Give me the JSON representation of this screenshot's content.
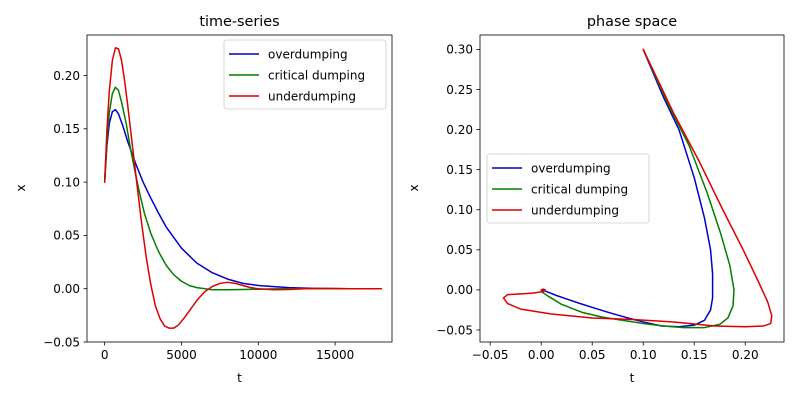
{
  "chart_data": [
    {
      "type": "line",
      "title": "time-series",
      "xlabel": "t",
      "ylabel": "x",
      "xlim": [
        -1150,
        18700
      ],
      "ylim": [
        -0.05,
        0.238
      ],
      "xticks": [
        0,
        5000,
        10000,
        15000
      ],
      "xtick_labels": [
        "0",
        "5000",
        "10000",
        "15000"
      ],
      "yticks": [
        -0.05,
        0.0,
        0.05,
        0.1,
        0.15,
        0.2
      ],
      "ytick_labels": [
        "−0.05",
        "0.00",
        "0.05",
        "0.10",
        "0.15",
        "0.20"
      ],
      "grid": false,
      "legend_position": "top-right",
      "series": [
        {
          "name": "overdumping",
          "color": "#0000cc",
          "x": [
            0,
            150,
            300,
            500,
            700,
            900,
            1200,
            1500,
            2000,
            2500,
            3000,
            3500,
            4000,
            5000,
            6000,
            7000,
            8000,
            9000,
            10000,
            11000,
            12000,
            13000,
            14000,
            15000,
            16000,
            17000,
            18000
          ],
          "y": [
            0.1,
            0.135,
            0.155,
            0.166,
            0.168,
            0.164,
            0.152,
            0.138,
            0.118,
            0.1,
            0.085,
            0.071,
            0.058,
            0.038,
            0.024,
            0.015,
            0.009,
            0.005,
            0.003,
            0.002,
            0.001,
            0.0005,
            0.0002,
            0.0001,
            0.0,
            0.0,
            0.0
          ]
        },
        {
          "name": "critical dumping",
          "color": "#008000",
          "x": [
            0,
            150,
            300,
            500,
            700,
            900,
            1100,
            1400,
            1700,
            2000,
            2300,
            2600,
            3000,
            3500,
            4000,
            4500,
            5000,
            5500,
            6000,
            7000,
            8000,
            9000,
            10000,
            11000,
            12000,
            13000,
            14000,
            15000,
            16000,
            17000,
            18000
          ],
          "y": [
            0.1,
            0.14,
            0.165,
            0.183,
            0.189,
            0.186,
            0.175,
            0.155,
            0.13,
            0.108,
            0.088,
            0.07,
            0.052,
            0.035,
            0.022,
            0.013,
            0.007,
            0.003,
            0.001,
            -0.001,
            -0.001,
            -0.0008,
            -0.0005,
            -0.0002,
            0.0,
            0.0,
            0.0,
            0.0,
            0.0,
            0.0,
            0.0
          ]
        },
        {
          "name": "underdumping",
          "color": "#dd0000",
          "x": [
            0,
            150,
            300,
            500,
            700,
            900,
            1100,
            1300,
            1500,
            1800,
            2100,
            2400,
            2700,
            3000,
            3300,
            3600,
            3900,
            4200,
            4500,
            4800,
            5200,
            5600,
            6000,
            6500,
            7000,
            7500,
            8000,
            8500,
            9000,
            9500,
            10000,
            11000,
            12000,
            13000,
            14000,
            15000,
            16000,
            17000,
            18000
          ],
          "y": [
            0.1,
            0.15,
            0.185,
            0.214,
            0.226,
            0.225,
            0.214,
            0.195,
            0.172,
            0.135,
            0.098,
            0.062,
            0.03,
            0.004,
            -0.016,
            -0.028,
            -0.035,
            -0.037,
            -0.037,
            -0.034,
            -0.027,
            -0.019,
            -0.011,
            -0.003,
            0.002,
            0.005,
            0.006,
            0.005,
            0.003,
            0.001,
            0.0,
            -0.001,
            -0.0008,
            0.0,
            0.0003,
            0.0002,
            0.0,
            0.0,
            0.0
          ]
        }
      ]
    },
    {
      "type": "line",
      "title": "phase space",
      "xlabel": "t",
      "ylabel": "x",
      "xlim": [
        -0.06,
        0.238
      ],
      "ylim": [
        -0.065,
        0.318
      ],
      "xticks": [
        -0.05,
        0.0,
        0.05,
        0.1,
        0.15,
        0.2
      ],
      "xtick_labels": [
        "−0.05",
        "0.00",
        "0.05",
        "0.10",
        "0.15",
        "0.20"
      ],
      "yticks": [
        -0.05,
        0.0,
        0.05,
        0.1,
        0.15,
        0.2,
        0.25,
        0.3
      ],
      "ytick_labels": [
        "−0.05",
        "0.00",
        "0.05",
        "0.10",
        "0.15",
        "0.20",
        "0.25",
        "0.30"
      ],
      "grid": false,
      "legend_position": "center-left",
      "series": [
        {
          "name": "overdumping",
          "color": "#0000cc",
          "x": [
            0.1,
            0.12,
            0.135,
            0.15,
            0.16,
            0.166,
            0.168,
            0.168,
            0.166,
            0.16,
            0.15,
            0.135,
            0.118,
            0.1,
            0.085,
            0.071,
            0.058,
            0.038,
            0.024,
            0.015,
            0.009,
            0.003,
            0.0
          ],
          "y": [
            0.3,
            0.24,
            0.2,
            0.14,
            0.09,
            0.05,
            0.02,
            -0.01,
            -0.025,
            -0.038,
            -0.044,
            -0.046,
            -0.045,
            -0.04,
            -0.035,
            -0.03,
            -0.025,
            -0.017,
            -0.011,
            -0.007,
            -0.004,
            -0.001,
            0.0
          ]
        },
        {
          "name": "critical dumping",
          "color": "#008000",
          "x": [
            0.1,
            0.125,
            0.145,
            0.163,
            0.176,
            0.185,
            0.189,
            0.188,
            0.183,
            0.175,
            0.16,
            0.14,
            0.12,
            0.1,
            0.08,
            0.06,
            0.04,
            0.02,
            0.007,
            0.0
          ],
          "y": [
            0.3,
            0.23,
            0.18,
            0.12,
            0.07,
            0.03,
            0.0,
            -0.02,
            -0.035,
            -0.043,
            -0.047,
            -0.047,
            -0.045,
            -0.042,
            -0.038,
            -0.034,
            -0.028,
            -0.018,
            -0.008,
            -0.002
          ]
        },
        {
          "name": "underdumping",
          "color": "#dd0000",
          "x": [
            0.1,
            0.13,
            0.155,
            0.178,
            0.198,
            0.213,
            0.222,
            0.226,
            0.225,
            0.218,
            0.2,
            0.17,
            0.13,
            0.09,
            0.05,
            0.01,
            -0.02,
            -0.033,
            -0.037,
            -0.033,
            -0.02,
            -0.008,
            0.002,
            0.004,
            0.002,
            0.0
          ],
          "y": [
            0.3,
            0.22,
            0.16,
            0.1,
            0.05,
            0.01,
            -0.015,
            -0.032,
            -0.042,
            -0.045,
            -0.046,
            -0.045,
            -0.04,
            -0.037,
            -0.035,
            -0.03,
            -0.024,
            -0.017,
            -0.01,
            -0.006,
            -0.005,
            -0.004,
            -0.002,
            0.0,
            0.001,
            0.0
          ]
        }
      ]
    }
  ]
}
